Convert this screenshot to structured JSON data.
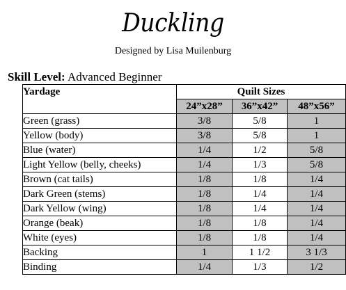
{
  "title": "Duckling",
  "designer": "Designed by Lisa Muilenburg",
  "skill": {
    "label": "Skill Level:",
    "value": "Advanced Beginner"
  },
  "table": {
    "yardage_header": "Yardage",
    "sizes_header": "Quilt Sizes",
    "sizes": [
      "24”x28”",
      "36”x42”",
      "48”x56”"
    ],
    "rows": [
      {
        "name": "Green (grass)",
        "values": [
          "3/8",
          "5/8",
          "1"
        ]
      },
      {
        "name": "Yellow (body)",
        "values": [
          "3/8",
          "5/8",
          "1"
        ]
      },
      {
        "name": "Blue (water)",
        "values": [
          "1/4",
          "1/2",
          "5/8"
        ]
      },
      {
        "name": "Light Yellow (belly, cheeks)",
        "values": [
          "1/4",
          "1/3",
          "5/8"
        ]
      },
      {
        "name": "Brown (cat tails)",
        "values": [
          "1/8",
          "1/8",
          "1/4"
        ]
      },
      {
        "name": "Dark Green (stems)",
        "values": [
          "1/8",
          "1/4",
          "1/4"
        ]
      },
      {
        "name": "Dark Yellow (wing)",
        "values": [
          "1/8",
          "1/4",
          "1/4"
        ]
      },
      {
        "name": "Orange (beak)",
        "values": [
          "1/8",
          "1/8",
          "1/4"
        ]
      },
      {
        "name": "White (eyes)",
        "values": [
          "1/8",
          "1/8",
          "1/4"
        ]
      },
      {
        "name": "Backing",
        "values": [
          "1",
          "1 1/2",
          "3 1/3"
        ]
      },
      {
        "name": "Binding",
        "values": [
          "1/4",
          "1/3",
          "1/2"
        ]
      }
    ],
    "shade_color": "#c0c0c0"
  }
}
